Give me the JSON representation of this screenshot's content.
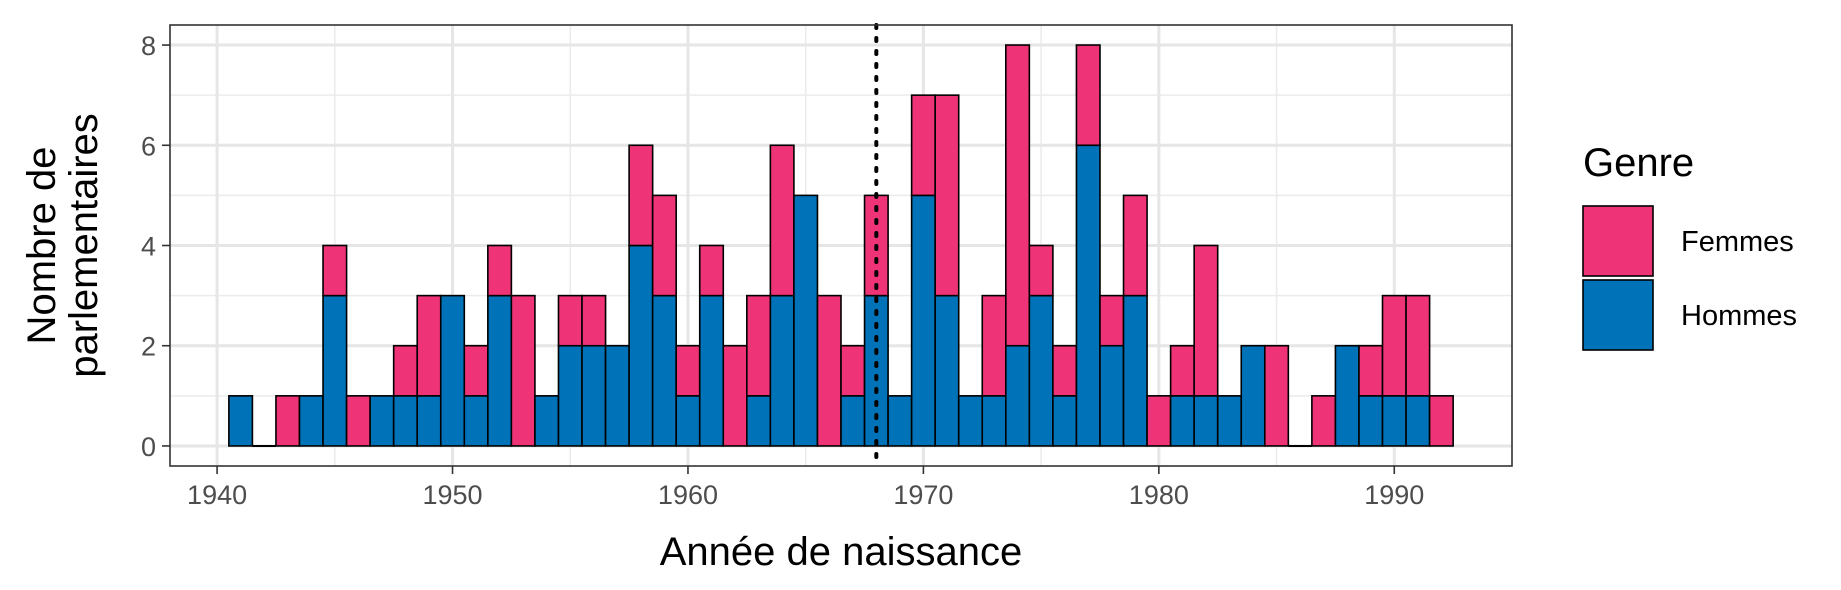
{
  "chart_data": {
    "type": "bar",
    "stacked": true,
    "xlabel": "Année de naissance",
    "ylabel_lines": [
      "Nombre de",
      "parlementaires"
    ],
    "xlim": [
      1938,
      1995
    ],
    "ylim": [
      -0.4,
      8.4
    ],
    "x_ticks": [
      1940,
      1950,
      1960,
      1970,
      1980,
      1990
    ],
    "y_ticks": [
      0,
      2,
      4,
      6,
      8
    ],
    "grid": true,
    "reference_line": {
      "x": 1968,
      "style": "dotted"
    },
    "x": [
      1941,
      1942,
      1943,
      1944,
      1945,
      1946,
      1947,
      1948,
      1949,
      1950,
      1951,
      1952,
      1953,
      1954,
      1955,
      1956,
      1957,
      1958,
      1959,
      1960,
      1961,
      1962,
      1963,
      1964,
      1965,
      1966,
      1967,
      1968,
      1969,
      1970,
      1971,
      1972,
      1973,
      1974,
      1975,
      1976,
      1977,
      1978,
      1979,
      1980,
      1981,
      1982,
      1983,
      1984,
      1985,
      1986,
      1987,
      1988,
      1989,
      1990,
      1991,
      1992
    ],
    "series": [
      {
        "name": "Hommes",
        "color": "#0072B8",
        "values": [
          1,
          0,
          0,
          1,
          3,
          0,
          1,
          1,
          1,
          3,
          1,
          3,
          0,
          1,
          2,
          2,
          2,
          4,
          3,
          1,
          3,
          0,
          1,
          3,
          5,
          0,
          1,
          3,
          1,
          5,
          3,
          1,
          1,
          2,
          3,
          1,
          6,
          2,
          3,
          0,
          1,
          1,
          1,
          2,
          0,
          0,
          0,
          2,
          1,
          1,
          1,
          0
        ]
      },
      {
        "name": "Femmes",
        "color": "#EE3377",
        "values": [
          0,
          0,
          1,
          0,
          1,
          1,
          0,
          1,
          2,
          0,
          1,
          1,
          3,
          0,
          1,
          1,
          0,
          2,
          2,
          1,
          1,
          2,
          2,
          3,
          0,
          3,
          1,
          2,
          0,
          2,
          4,
          0,
          2,
          6,
          1,
          1,
          2,
          1,
          2,
          1,
          1,
          3,
          0,
          0,
          2,
          0,
          1,
          0,
          1,
          2,
          2,
          1
        ]
      }
    ],
    "legend": {
      "title": "Genre",
      "placement": "right",
      "order": [
        "Femmes",
        "Hommes"
      ]
    }
  }
}
